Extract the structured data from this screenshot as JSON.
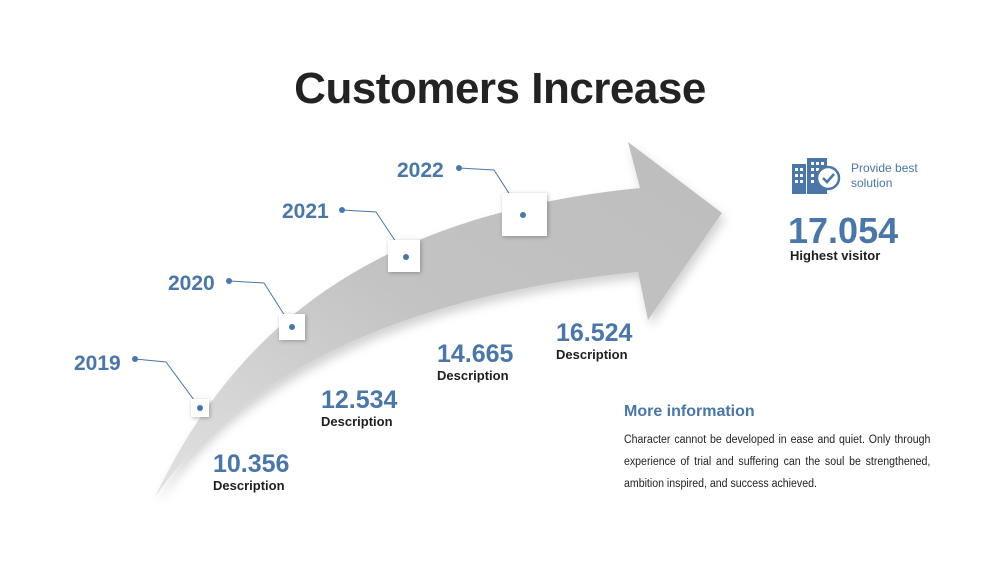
{
  "title": "Customers Increase",
  "milestones": [
    {
      "year": "2019",
      "value": "10.356",
      "description": "Description"
    },
    {
      "year": "2020",
      "value": "12.534",
      "description": "Description"
    },
    {
      "year": "2021",
      "value": "14.665",
      "description": "Description"
    },
    {
      "year": "2022",
      "value": "16.524",
      "description": "Description"
    }
  ],
  "highlight": {
    "note": "Provide best solution",
    "value": "17.054",
    "label": "Highest visitor",
    "icon": "building-check-icon"
  },
  "more_info": {
    "title": "More information",
    "body": "Character cannot be developed in ease and quiet. Only through experience of trial and suffering can the soul be strengthened, ambition inspired, and success achieved."
  },
  "colors": {
    "accent": "#4a76a8",
    "arrow": "#c6c6c6",
    "text": "#232323"
  }
}
